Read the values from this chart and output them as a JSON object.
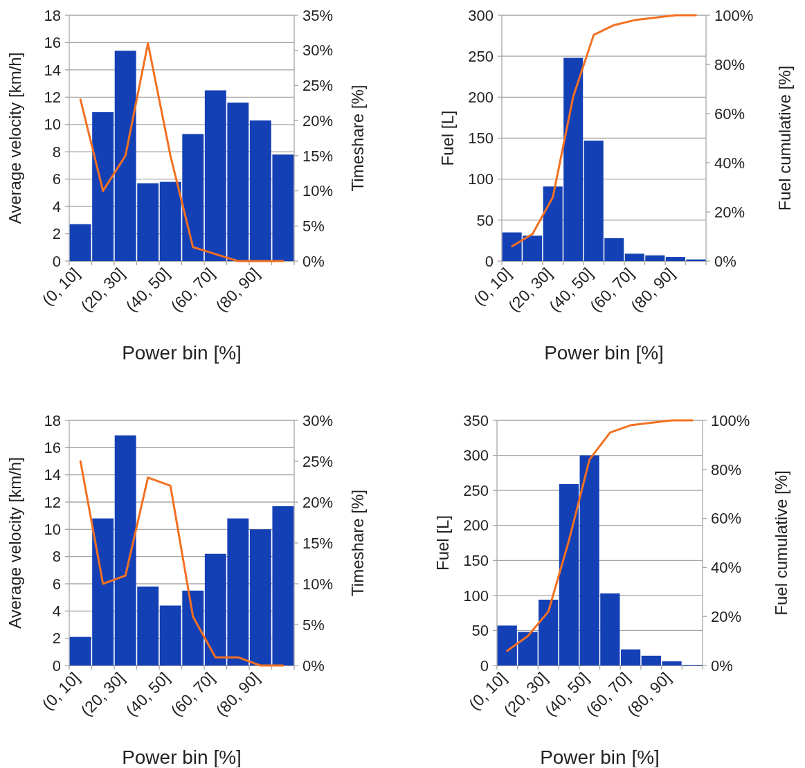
{
  "chart_data": [
    {
      "type": "bar",
      "categories": [
        "(0, 10]",
        null,
        "(20, 30]",
        null,
        "(40, 50]",
        null,
        "(60, 70]",
        null,
        "(80, 90]",
        null
      ],
      "xlabel": "Power bin [%]",
      "ylabel": "Average velocity [km/h]",
      "y2label": "Timeshare [%]",
      "ylim": [
        0,
        18
      ],
      "yticks": [
        0,
        2,
        4,
        6,
        8,
        10,
        12,
        14,
        16,
        18
      ],
      "y2lim": [
        0,
        35
      ],
      "y2ticks": [
        {
          "value": 0,
          "label": "0%"
        },
        {
          "value": 5,
          "label": "5%"
        },
        {
          "value": 10,
          "label": "10%"
        },
        {
          "value": 15,
          "label": "15%"
        },
        {
          "value": 20,
          "label": "20%"
        },
        {
          "value": 25,
          "label": "25%"
        },
        {
          "value": 30,
          "label": "30%"
        },
        {
          "value": 35,
          "label": "35%"
        }
      ],
      "grid": "y",
      "series": [
        {
          "color": "#1440b5",
          "values": [
            2.7,
            10.9,
            15.4,
            5.7,
            5.8,
            9.3,
            12.5,
            11.6,
            10.3,
            7.8
          ]
        },
        {
          "type": "line",
          "axis": "y2",
          "color": "#f37021",
          "values": [
            23,
            10,
            15,
            31,
            15,
            2,
            1,
            0,
            0,
            0
          ]
        }
      ]
    },
    {
      "type": "bar",
      "categories": [
        "(0, 10]",
        null,
        "(20, 30]",
        null,
        "(40, 50]",
        null,
        "(60, 70]",
        null,
        "(80, 90]",
        null
      ],
      "xlabel": "Power bin [%]",
      "ylabel": "Fuel [L]",
      "y2label": "Fuel cumulative [%]",
      "ylim": [
        0,
        300
      ],
      "yticks": [
        0,
        50,
        100,
        150,
        200,
        250,
        300
      ],
      "y2lim": [
        0,
        100
      ],
      "y2ticks": [
        {
          "value": 0,
          "label": "0%"
        },
        {
          "value": 20,
          "label": "20%"
        },
        {
          "value": 40,
          "label": "40%"
        },
        {
          "value": 60,
          "label": "60%"
        },
        {
          "value": 80,
          "label": "80%"
        },
        {
          "value": 100,
          "label": "100%"
        }
      ],
      "grid": "y",
      "series": [
        {
          "color": "#1440b5",
          "values": [
            35,
            31,
            91,
            248,
            147,
            28,
            9,
            7,
            5,
            2
          ]
        },
        {
          "type": "line",
          "axis": "y2",
          "color": "#f37021",
          "values": [
            6,
            11,
            26,
            67,
            92,
            96,
            98,
            99,
            100,
            100
          ]
        }
      ]
    },
    {
      "type": "bar",
      "categories": [
        "(0, 10]",
        null,
        "(20, 30]",
        null,
        "(40, 50]",
        null,
        "(60, 70]",
        null,
        "(80, 90]",
        null
      ],
      "xlabel": "Power bin [%]",
      "ylabel": "Average velocity [km/h]",
      "y2label": "Timeshare [%]",
      "ylim": [
        0,
        18
      ],
      "yticks": [
        0,
        2,
        4,
        6,
        8,
        10,
        12,
        14,
        16,
        18
      ],
      "y2lim": [
        0,
        30
      ],
      "y2ticks": [
        {
          "value": 0,
          "label": "0%"
        },
        {
          "value": 5,
          "label": "5%"
        },
        {
          "value": 10,
          "label": "10%"
        },
        {
          "value": 15,
          "label": "15%"
        },
        {
          "value": 20,
          "label": "20%"
        },
        {
          "value": 25,
          "label": "25%"
        },
        {
          "value": 30,
          "label": "30%"
        }
      ],
      "grid": "y",
      "series": [
        {
          "color": "#1440b5",
          "values": [
            2.1,
            10.8,
            16.9,
            5.8,
            4.4,
            5.5,
            8.2,
            10.8,
            10.0,
            11.7
          ]
        },
        {
          "type": "line",
          "axis": "y2",
          "color": "#f37021",
          "values": [
            25,
            10,
            11,
            23,
            22,
            6,
            1,
            1,
            0,
            0
          ]
        }
      ]
    },
    {
      "type": "bar",
      "categories": [
        "(0, 10]",
        null,
        "(20, 30]",
        null,
        "(40, 50]",
        null,
        "(60, 70]",
        null,
        "(80, 90]",
        null
      ],
      "xlabel": "Power bin [%]",
      "ylabel": "Fuel [L]",
      "y2label": "Fuel cumulative [%]",
      "ylim": [
        0,
        350
      ],
      "yticks": [
        0,
        50,
        100,
        150,
        200,
        250,
        300,
        350
      ],
      "y2lim": [
        0,
        100
      ],
      "y2ticks": [
        {
          "value": 0,
          "label": "0%"
        },
        {
          "value": 20,
          "label": "20%"
        },
        {
          "value": 40,
          "label": "40%"
        },
        {
          "value": 60,
          "label": "60%"
        },
        {
          "value": 80,
          "label": "80%"
        },
        {
          "value": 100,
          "label": "100%"
        }
      ],
      "grid": "y",
      "series": [
        {
          "color": "#1440b5",
          "values": [
            57,
            48,
            94,
            259,
            300,
            103,
            23,
            14,
            6,
            1
          ]
        },
        {
          "type": "line",
          "axis": "y2",
          "color": "#f37021",
          "values": [
            6,
            12,
            22,
            51,
            84,
            95,
            98,
            99,
            100,
            100
          ]
        }
      ]
    }
  ]
}
